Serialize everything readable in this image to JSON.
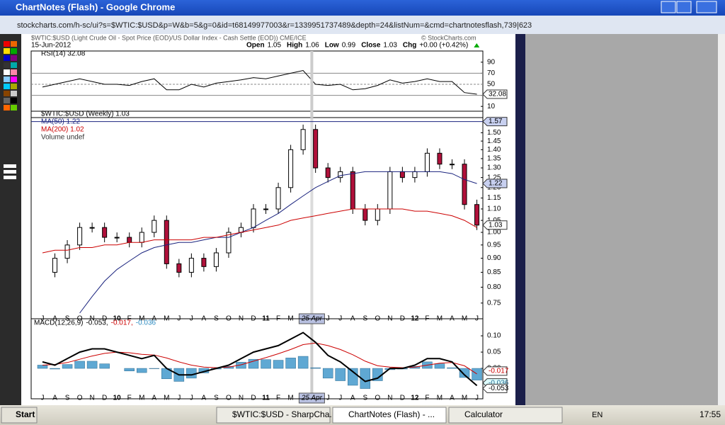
{
  "window": {
    "title": "ChartNotes (Flash) - Google Chrome",
    "url": "stockcharts.com/h-sc/ui?s=$WTIC:$USD&p=W&b=5&g=0&id=t68149977003&r=1339951737489&depth=24&listNum=&cmd=chartnotesflash,739|623"
  },
  "chart_header": {
    "symbol": "$WTIC:$USD (Light Crude Oil - Spot Price (EOD)/US Dollar Index - Cash Settle (EOD)) CME/ICE",
    "credit": "© StockCharts.com",
    "date": "15-Jun-2012",
    "stats": [
      [
        "Open",
        "1.05"
      ],
      [
        "High",
        "1.06"
      ],
      [
        "Low",
        "0.99"
      ],
      [
        "Close",
        "1.03"
      ],
      [
        "Chg",
        "+0.00 (+0.42%)"
      ]
    ]
  },
  "chart_data": [
    {
      "type": "line",
      "legend": [
        "RSI(14) 32.08"
      ],
      "ylim": [
        0,
        100
      ],
      "yticks": [
        10,
        30,
        50,
        70,
        90
      ],
      "guides": [
        30,
        50,
        70
      ],
      "series": [
        {
          "name": "RSI(14)",
          "color": "#000000",
          "values": [
            45,
            50,
            55,
            60,
            55,
            50,
            50,
            48,
            55,
            60,
            40,
            40,
            50,
            45,
            52,
            55,
            58,
            62,
            60,
            65,
            70,
            75,
            50,
            48,
            50,
            40,
            42,
            48,
            58,
            52,
            55,
            60,
            55,
            55,
            35,
            32.08
          ]
        }
      ]
    },
    {
      "type": "line",
      "log_scale": true,
      "ylim": [
        0.72,
        1.6
      ],
      "yticks": [
        {
          "value": 0.75,
          "label": "0.75"
        },
        {
          "value": 0.8,
          "label": "0.80"
        },
        {
          "value": 0.85,
          "label": "0.85"
        },
        {
          "value": 0.9,
          "label": "0.90"
        },
        {
          "value": 0.95,
          "label": "0.95"
        },
        {
          "value": 1,
          "label": "1.00"
        },
        {
          "value": 1.05,
          "label": "1.05"
        },
        {
          "value": 1.1,
          "label": "1.10"
        },
        {
          "value": 1.15,
          "label": "1.15"
        },
        {
          "value": 1.2,
          "label": "1.20"
        },
        {
          "value": 1.25,
          "label": "1.25"
        },
        {
          "value": 1.3,
          "label": "1.30"
        },
        {
          "value": 1.35,
          "label": "1.35"
        },
        {
          "value": 1.4,
          "label": "1.40"
        },
        {
          "value": 1.45,
          "label": "1.45"
        },
        {
          "value": 1.5,
          "label": "1.50"
        }
      ],
      "categories": [
        "J",
        "A",
        "S",
        "O",
        "N",
        "D",
        "10",
        "F",
        "M",
        "A",
        "M",
        "J",
        "J",
        "A",
        "S",
        "O",
        "N",
        "D",
        "11",
        "F",
        "M",
        null,
        null,
        "J",
        "J",
        "A",
        "S",
        "O",
        "N",
        "D",
        "12",
        "F",
        "M",
        "A",
        "M",
        "J"
      ],
      "cursor": {
        "label": "25 Apr",
        "value": 1.57
      },
      "legend": [
        "$WTIC:$USD (Weekly) 1.03",
        "MA(50) 1.22",
        "MA(200) 1.02",
        "Volume undef"
      ],
      "series": [
        {
          "name": "$WTIC:$USD",
          "color": "#000000",
          "values": [
            0.85,
            0.9,
            0.95,
            1.02,
            1.02,
            0.98,
            0.98,
            0.96,
            1.0,
            1.05,
            0.88,
            0.85,
            0.9,
            0.87,
            0.92,
            1.0,
            1.02,
            1.1,
            1.1,
            1.2,
            1.4,
            1.52,
            1.3,
            1.25,
            1.28,
            1.1,
            1.05,
            1.1,
            1.28,
            1.25,
            1.28,
            1.38,
            1.32,
            1.32,
            1.12,
            1.03
          ]
        },
        {
          "name": "MA(50)",
          "color": "#1a237e",
          "values": [
            null,
            null,
            null,
            0.72,
            0.77,
            0.82,
            0.86,
            0.89,
            0.92,
            0.94,
            0.95,
            0.96,
            0.96,
            0.97,
            0.98,
            0.98,
            1.0,
            1.02,
            1.05,
            1.08,
            1.12,
            1.16,
            1.2,
            1.23,
            1.26,
            1.27,
            1.28,
            1.28,
            1.28,
            1.28,
            1.28,
            1.28,
            1.28,
            1.27,
            1.24,
            1.22
          ]
        },
        {
          "name": "MA(200)",
          "color": "#cc0000",
          "values": [
            0.92,
            0.93,
            0.93,
            0.94,
            0.94,
            0.95,
            0.95,
            0.96,
            0.96,
            0.97,
            0.97,
            0.97,
            0.97,
            0.98,
            0.98,
            0.99,
            1.0,
            1.01,
            1.02,
            1.03,
            1.05,
            1.06,
            1.07,
            1.08,
            1.09,
            1.1,
            1.1,
            1.1,
            1.1,
            1.1,
            1.09,
            1.09,
            1.08,
            1.07,
            1.05,
            1.02
          ]
        }
      ]
    },
    {
      "type": "macd",
      "legend": [
        "MACD(12,26,9)",
        "-0.053,",
        "-0.017,",
        "-0.036"
      ],
      "ylim": [
        -0.076,
        0.135
      ],
      "yticks": [
        {
          "value": 0.1,
          "label": "0.10"
        },
        {
          "value": 0.05,
          "label": "0.05"
        },
        {
          "value": 0,
          "label": "0.00"
        }
      ],
      "series": [
        {
          "name": "MACD",
          "color": "#000000",
          "values": [
            0.02,
            0.01,
            0.03,
            0.05,
            0.06,
            0.06,
            0.05,
            0.04,
            0.03,
            0.04,
            0.0,
            -0.02,
            -0.02,
            -0.01,
            0.0,
            0.01,
            0.03,
            0.05,
            0.06,
            0.07,
            0.09,
            0.11,
            0.08,
            0.04,
            0.02,
            -0.01,
            -0.04,
            -0.03,
            0.0,
            0.0,
            0.01,
            0.03,
            0.03,
            0.02,
            -0.02,
            -0.053
          ]
        },
        {
          "name": "Signal",
          "color": "#cc0000",
          "values": [
            0.01,
            0.012,
            0.018,
            0.028,
            0.038,
            0.046,
            0.05,
            0.048,
            0.043,
            0.041,
            0.032,
            0.02,
            0.01,
            0.004,
            0.002,
            0.004,
            0.011,
            0.022,
            0.033,
            0.045,
            0.058,
            0.073,
            0.078,
            0.07,
            0.058,
            0.042,
            0.022,
            0.008,
            0.004,
            0.002,
            0.004,
            0.01,
            0.016,
            0.018,
            0.008,
            -0.017
          ]
        },
        {
          "name": "Histogram",
          "color": "#5fa8d3",
          "values": [
            0.01,
            -0.002,
            0.012,
            0.022,
            0.022,
            0.014,
            0,
            -0.008,
            -0.013,
            -0.001,
            -0.032,
            -0.04,
            -0.03,
            -0.014,
            -0.002,
            0.006,
            0.019,
            0.028,
            0.027,
            0.025,
            0.032,
            0.037,
            0.002,
            -0.03,
            -0.038,
            -0.052,
            -0.062,
            -0.038,
            -0.004,
            -0.002,
            0.006,
            0.02,
            0.014,
            0.002,
            -0.028,
            -0.036
          ]
        }
      ]
    }
  ],
  "taskbar": {
    "start": "Start",
    "tasks": [
      "$WTIC:$USD - SharpCha...",
      "ChartNotes (Flash) - ...",
      "Calculator"
    ],
    "lang": "EN",
    "clock": "17:55"
  }
}
